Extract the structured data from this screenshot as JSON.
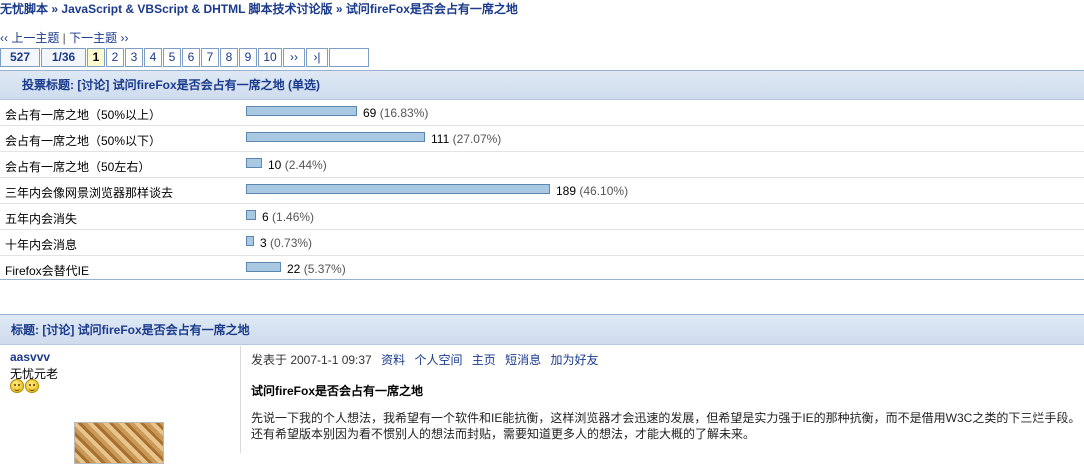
{
  "breadcrumb": {
    "home": "无忧脚本",
    "forum": "JavaScript & VBScript & DHTML 脚本技术讨论版",
    "topic": "试问fireFox是否会占有一席之地",
    "separator": "»"
  },
  "topic_nav": {
    "prev": "‹‹ 上一主题",
    "sep": "|",
    "next": "下一主题 ››"
  },
  "pager": {
    "total_label": "527",
    "page_of": "1/36",
    "pages": [
      "1",
      "2",
      "3",
      "4",
      "5",
      "6",
      "7",
      "8",
      "9",
      "10"
    ],
    "current": "1",
    "next_label": "››",
    "last_label": "›|"
  },
  "poll": {
    "header": "投票标题: [讨论] 试问fireFox是否会占有一席之地 (单选)",
    "options": [
      {
        "label": "会占有一席之地（50%以上）",
        "count": "69",
        "percent": "(16.83%)",
        "fraction": 0.1683
      },
      {
        "label": "会占有一席之地（50%以下）",
        "count": "111",
        "percent": "(27.07%)",
        "fraction": 0.2707
      },
      {
        "label": "会占有一席之地（50左右）",
        "count": "10",
        "percent": "(2.44%)",
        "fraction": 0.0244
      },
      {
        "label": "三年内会像网景浏览器那样谈去",
        "count": "189",
        "percent": "(46.10%)",
        "fraction": 0.461
      },
      {
        "label": "五年内会消失",
        "count": "6",
        "percent": "(1.46%)",
        "fraction": 0.0146
      },
      {
        "label": "十年内会消息",
        "count": "3",
        "percent": "(0.73%)",
        "fraction": 0.0073
      },
      {
        "label": "Firefox会替代IE",
        "count": "22",
        "percent": "(5.37%)",
        "fraction": 0.0537
      }
    ],
    "bar_color": "#a9c8e2"
  },
  "post": {
    "header": "标题: [讨论] 试问fireFox是否会占有一席之地",
    "author": "aasvvv",
    "user_title": "无忧元老",
    "meta_prefix": "发表于 2007-1-1 09:37",
    "meta_links": [
      "资料",
      "个人空间",
      "主页",
      "短消息",
      "加为好友"
    ],
    "title": "试问fireFox是否会占有一席之地",
    "body_line1": "先说一下我的个人想法，我希望有一个软件和IE能抗衡，这样浏览器才会迅速的发展，但希望是实力强于IE的那种抗衡，而不是借用W3C之类的下三烂手段。",
    "body_line2": "还有希望版本别因为看不惯别人的想法而封贴，需要知道更多人的想法，才能大概的了解未来。"
  },
  "colors": {
    "link": "#1a3a8c",
    "header_bg": "#d6e2f1",
    "border": "#9ab0d0"
  }
}
